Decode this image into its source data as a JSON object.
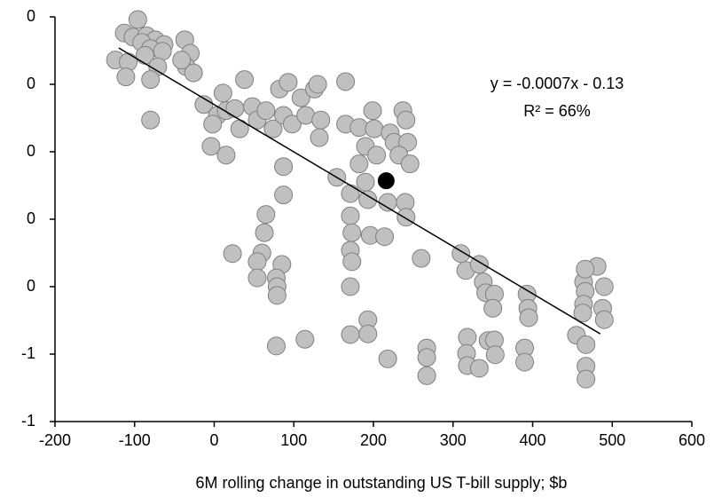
{
  "chart_data": {
    "type": "scatter",
    "x_label": "6M rolling change in outstanding US T-bill supply; $b",
    "annotations": [
      "y = -0.0007x - 0.13",
      "R² = 66%"
    ],
    "xlim": [
      -200,
      600
    ],
    "xticks": [
      -200,
      -100,
      0,
      100,
      200,
      300,
      400,
      500,
      600
    ],
    "ylim": [
      -0.6,
      0
    ],
    "yticks": [
      {
        "value": 0,
        "label": "0"
      },
      {
        "value": -0.1,
        "label": "0"
      },
      {
        "value": -0.2,
        "label": "0"
      },
      {
        "value": -0.3,
        "label": "0"
      },
      {
        "value": -0.4,
        "label": "0"
      },
      {
        "value": -0.5,
        "label": "-1"
      },
      {
        "value": -0.6,
        "label": "-1"
      }
    ],
    "series": [
      {
        "color": "#c0c0c0",
        "x": [
          -96,
          -113,
          -102,
          -85,
          -74,
          -63,
          -124,
          -108,
          -91,
          -80,
          -65,
          -87,
          -71,
          -80,
          -111,
          -37,
          -30,
          -35,
          -26,
          -41,
          -80,
          -13,
          4,
          -2,
          15,
          11,
          -4,
          15,
          26,
          32,
          38,
          48,
          54,
          65,
          74,
          82,
          93,
          87,
          98,
          115,
          109,
          126,
          130,
          134,
          132,
          165,
          87,
          87,
          65,
          63,
          60,
          54,
          23,
          85,
          78,
          79,
          79,
          78,
          114,
          54,
          154,
          165,
          182,
          199,
          201,
          190,
          204,
          221,
          226,
          237,
          241,
          243,
          232,
          246,
          182,
          190,
          171,
          193,
          218,
          240,
          241,
          171,
          173,
          171,
          173,
          196,
          214,
          171,
          171,
          193,
          193,
          218,
          260,
          310,
          316,
          333,
          338,
          341,
          352,
          350,
          393,
          394,
          395,
          318,
          317,
          318,
          333,
          344,
          352,
          353,
          390,
          390,
          267,
          267,
          267,
          464,
          466,
          464,
          463,
          481,
          490,
          488,
          490,
          466,
          455,
          467,
          467,
          467
        ],
        "values": [
          -0.004,
          -0.024,
          -0.03,
          -0.028,
          -0.034,
          -0.041,
          -0.064,
          -0.067,
          -0.038,
          -0.047,
          -0.051,
          -0.057,
          -0.074,
          -0.093,
          -0.089,
          -0.034,
          -0.054,
          -0.074,
          -0.083,
          -0.064,
          -0.153,
          -0.13,
          -0.146,
          -0.159,
          -0.139,
          -0.113,
          -0.192,
          -0.205,
          -0.136,
          -0.166,
          -0.093,
          -0.133,
          -0.153,
          -0.139,
          -0.166,
          -0.107,
          -0.097,
          -0.146,
          -0.159,
          -0.146,
          -0.12,
          -0.107,
          -0.1,
          -0.153,
          -0.179,
          -0.096,
          -0.222,
          -0.264,
          -0.293,
          -0.32,
          -0.35,
          -0.363,
          -0.351,
          -0.367,
          -0.387,
          -0.4,
          -0.413,
          -0.488,
          -0.478,
          -0.387,
          -0.238,
          -0.159,
          -0.164,
          -0.139,
          -0.166,
          -0.192,
          -0.205,
          -0.172,
          -0.186,
          -0.139,
          -0.153,
          -0.186,
          -0.205,
          -0.218,
          -0.218,
          -0.245,
          -0.262,
          -0.271,
          -0.275,
          -0.275,
          -0.297,
          -0.295,
          -0.32,
          -0.346,
          -0.363,
          -0.324,
          -0.326,
          -0.4,
          -0.471,
          -0.449,
          -0.47,
          -0.507,
          -0.358,
          -0.351,
          -0.376,
          -0.367,
          -0.393,
          -0.409,
          -0.411,
          -0.432,
          -0.411,
          -0.432,
          -0.446,
          -0.475,
          -0.499,
          -0.517,
          -0.521,
          -0.48,
          -0.479,
          -0.501,
          -0.491,
          -0.512,
          -0.491,
          -0.505,
          -0.532,
          -0.393,
          -0.407,
          -0.426,
          -0.439,
          -0.37,
          -0.4,
          -0.432,
          -0.449,
          -0.374,
          -0.472,
          -0.486,
          -0.518,
          -0.537
        ]
      },
      {
        "color": "#000000",
        "x": [
          216
        ],
        "values": [
          -0.243
        ]
      }
    ],
    "trendline": {
      "color": "#000000",
      "x": [
        -120,
        485
      ],
      "values": [
        -0.046,
        -0.47
      ]
    }
  }
}
